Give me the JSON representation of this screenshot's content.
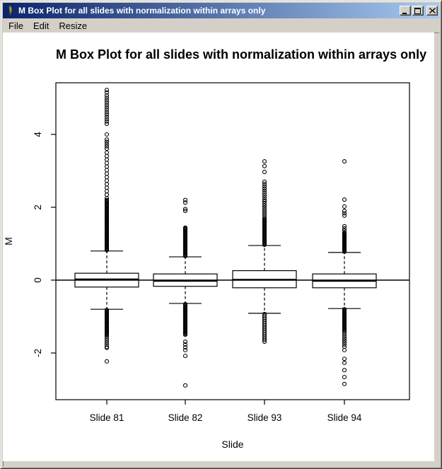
{
  "window": {
    "title": "M Box Plot for all slides with normalization within arrays only",
    "controls": {
      "minimize_label": "minimize",
      "maximize_label": "maximize",
      "close_label": "close"
    }
  },
  "menu": {
    "items": [
      {
        "label": "File"
      },
      {
        "label": "Edit"
      },
      {
        "label": "Resize"
      }
    ]
  },
  "colors": {
    "titlebar_left": "#0a246a",
    "titlebar_right": "#a6caf0",
    "chrome": "#d4d0c8",
    "canvas": "#ffffff",
    "plot": "#000000"
  },
  "chart_data": {
    "type": "boxplot",
    "title": "M Box Plot for all slides with normalization within arrays only",
    "xlabel": "Slide",
    "ylabel": "M",
    "ylim": [
      -3.3,
      5.45
    ],
    "yticks": [
      -2,
      0,
      2,
      4
    ],
    "reference_line_y": 0,
    "grid": false,
    "categories": [
      "Slide 81",
      "Slide 82",
      "Slide 93",
      "Slide 94"
    ],
    "series": [
      {
        "name": "Slide 81",
        "q1": -0.19,
        "median": 0.02,
        "q3": 0.19,
        "whisker_low": -0.8,
        "whisker_high": 0.8,
        "outliers_high_bands": [
          [
            0.82,
            2.2,
            60
          ],
          [
            2.25,
            3.5,
            14
          ],
          [
            3.61,
            3.86,
            5
          ],
          [
            4.0,
            4.0,
            1
          ],
          [
            4.29,
            5.07,
            13
          ],
          [
            5.15,
            5.22,
            2
          ]
        ],
        "outliers_low_bands": [
          [
            -1.5,
            -0.82,
            30
          ],
          [
            -1.83,
            -1.53,
            6
          ],
          [
            -1.86,
            -1.86,
            1
          ],
          [
            -2.23,
            -2.23,
            1
          ]
        ]
      },
      {
        "name": "Slide 82",
        "q1": -0.17,
        "median": -0.02,
        "q3": 0.17,
        "whisker_low": -0.64,
        "whisker_high": 0.64,
        "outliers_high_bands": [
          [
            0.66,
            1.44,
            35
          ],
          [
            1.9,
            1.95,
            2
          ],
          [
            2.13,
            2.2,
            2
          ]
        ],
        "outliers_low_bands": [
          [
            -1.5,
            -0.66,
            36
          ],
          [
            -1.92,
            -1.69,
            4
          ],
          [
            -2.08,
            -2.08,
            1
          ],
          [
            -2.89,
            -2.89,
            1
          ]
        ]
      },
      {
        "name": "Slide 93",
        "q1": -0.21,
        "median": 0.01,
        "q3": 0.26,
        "whisker_low": -0.91,
        "whisker_high": 0.95,
        "outliers_high_bands": [
          [
            0.97,
            1.67,
            30
          ],
          [
            1.7,
            2.16,
            9
          ],
          [
            2.21,
            2.7,
            9
          ],
          [
            2.97,
            2.97,
            1
          ],
          [
            3.13,
            3.13,
            1
          ],
          [
            3.26,
            3.26,
            1
          ]
        ],
        "outliers_low_bands": [
          [
            -1.69,
            -0.93,
            16
          ]
        ]
      },
      {
        "name": "Slide 94",
        "q1": -0.21,
        "median": -0.02,
        "q3": 0.17,
        "whisker_low": -0.78,
        "whisker_high": 0.76,
        "outliers_high_bands": [
          [
            0.78,
            1.28,
            24
          ],
          [
            1.3,
            1.48,
            4
          ],
          [
            1.77,
            1.9,
            3
          ],
          [
            2.02,
            2.02,
            1
          ],
          [
            2.21,
            2.21,
            1
          ],
          [
            3.26,
            3.26,
            1
          ]
        ],
        "outliers_low_bands": [
          [
            -1.38,
            -0.8,
            26
          ],
          [
            -1.83,
            -1.42,
            8
          ],
          [
            -1.92,
            -1.92,
            1
          ],
          [
            -2.16,
            -2.16,
            1
          ],
          [
            -2.27,
            -2.27,
            1
          ],
          [
            -2.47,
            -2.47,
            1
          ],
          [
            -2.66,
            -2.66,
            1
          ],
          [
            -2.85,
            -2.85,
            1
          ]
        ]
      }
    ]
  }
}
